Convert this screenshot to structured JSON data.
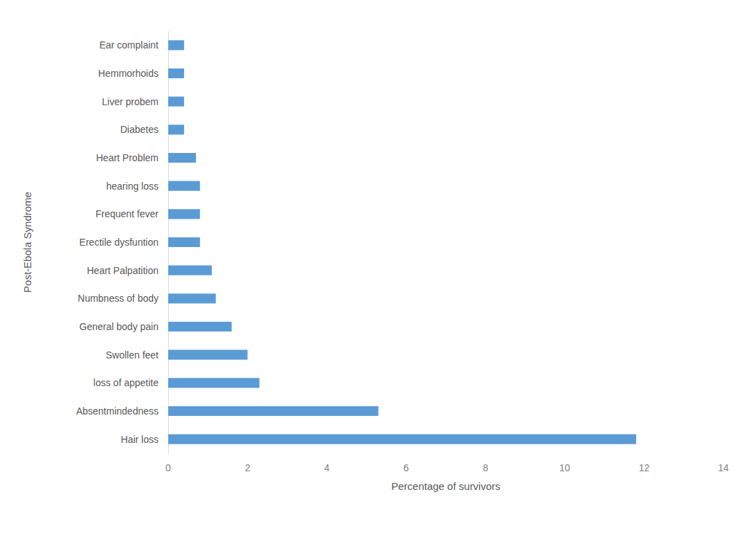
{
  "chart_data": {
    "type": "bar",
    "orientation": "horizontal",
    "x_label": "Percentage of survivors",
    "y_label": "Post-Ebola Syndrome",
    "categories": [
      "Hair loss",
      "Absentmindedness",
      "loss of appetite",
      "Swollen feet",
      "General body pain",
      "Numbness of body",
      "Heart Palpatition",
      "Erectile dysfuntion",
      "Frequent fever",
      "hearing loss",
      "Heart Problem",
      "Diabetes",
      "Liver probem",
      "Hemmorhoids",
      "Ear complaint"
    ],
    "values": [
      11.8,
      5.3,
      2.3,
      2.0,
      1.6,
      1.2,
      1.1,
      0.8,
      0.8,
      0.8,
      0.7,
      0.4,
      0.4,
      0.4,
      0.4
    ],
    "color": "#5b9bd5",
    "xlim": [
      0,
      14
    ],
    "xticks": [
      0,
      2,
      4,
      6,
      8,
      10,
      12,
      14
    ],
    "grid": false
  }
}
